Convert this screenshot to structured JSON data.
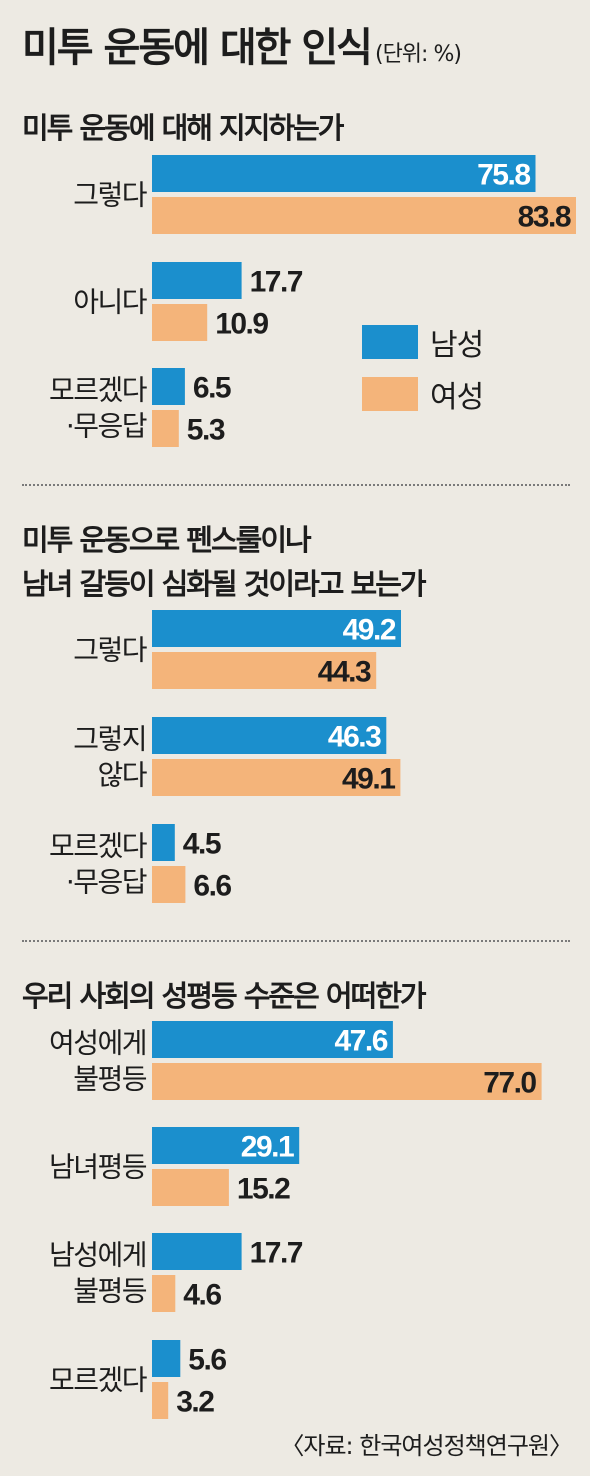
{
  "title": "미투 운동에 대한 인식",
  "unit": "(단위: %)",
  "source": "〈자료: 한국여성정책연구원〉",
  "colors": {
    "male": "#1b8fcd",
    "female": "#f4b47a"
  },
  "legend": [
    {
      "label": "남성",
      "color": "#1b8fcd"
    },
    {
      "label": "여성",
      "color": "#f4b47a"
    }
  ],
  "chart_data": [
    {
      "type": "bar",
      "orientation": "horizontal",
      "title": "미투 운동에 대해 지지하는가",
      "categories": [
        [
          "그렇다"
        ],
        [
          "아니다"
        ],
        [
          "모르겠다",
          "·무응답"
        ]
      ],
      "series": [
        {
          "name": "남성",
          "values": [
            75.8,
            17.7,
            6.5
          ]
        },
        {
          "name": "여성",
          "values": [
            83.8,
            10.9,
            5.3
          ]
        }
      ]
    },
    {
      "type": "bar",
      "orientation": "horizontal",
      "title": "미투 운동으로 펜스룰이나 남녀 갈등이 심화될 것이라고 보는가",
      "title_lines": [
        "미투 운동으로 펜스룰이나",
        "남녀 갈등이 심화될 것이라고 보는가"
      ],
      "categories": [
        [
          "그렇다"
        ],
        [
          "그렇지",
          "않다"
        ],
        [
          "모르겠다",
          "·무응답"
        ]
      ],
      "series": [
        {
          "name": "남성",
          "values": [
            49.2,
            46.3,
            4.5
          ]
        },
        {
          "name": "여성",
          "values": [
            44.3,
            49.1,
            6.6
          ]
        }
      ]
    },
    {
      "type": "bar",
      "orientation": "horizontal",
      "title": "우리 사회의 성평등 수준은 어떠한가",
      "categories": [
        [
          "여성에게",
          "불평등"
        ],
        [
          "남녀평등"
        ],
        [
          "남성에게",
          "불평등"
        ],
        [
          "모르겠다"
        ]
      ],
      "series": [
        {
          "name": "남성",
          "values": [
            47.6,
            29.1,
            17.7,
            5.6
          ]
        },
        {
          "name": "여성",
          "values": [
            77.0,
            15.2,
            4.6,
            3.2
          ]
        }
      ]
    }
  ]
}
